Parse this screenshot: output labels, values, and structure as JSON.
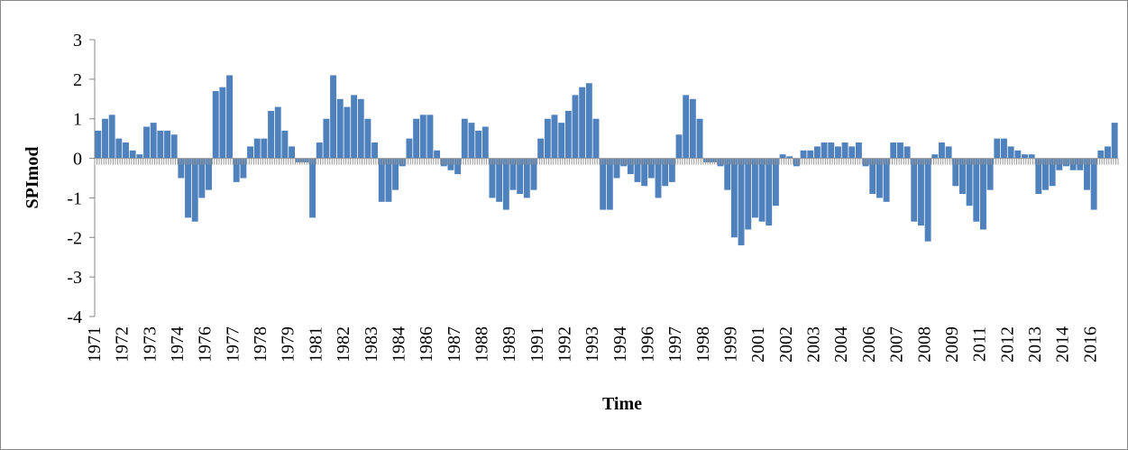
{
  "chart_data": {
    "type": "bar",
    "x_label": "Time",
    "y_label": "SPImod",
    "categories": [
      "1971",
      null,
      null,
      null,
      "1972",
      null,
      null,
      null,
      "1973",
      null,
      null,
      null,
      "1974",
      null,
      null,
      null,
      "1976",
      null,
      null,
      null,
      "1977",
      null,
      null,
      null,
      "1978",
      null,
      null,
      null,
      "1979",
      null,
      null,
      null,
      "1981",
      null,
      null,
      null,
      "1982",
      null,
      null,
      null,
      "1983",
      null,
      null,
      null,
      "1984",
      null,
      null,
      null,
      "1986",
      null,
      null,
      null,
      "1987",
      null,
      null,
      null,
      "1988",
      null,
      null,
      null,
      "1989",
      null,
      null,
      null,
      "1991",
      null,
      null,
      null,
      "1992",
      null,
      null,
      null,
      "1993",
      null,
      null,
      null,
      "1994",
      null,
      null,
      null,
      "1996",
      null,
      null,
      null,
      "1997",
      null,
      null,
      null,
      "1998",
      null,
      null,
      null,
      "1999",
      null,
      null,
      null,
      "2001",
      null,
      null,
      null,
      "2002",
      null,
      null,
      null,
      "2003",
      null,
      null,
      null,
      "2004",
      null,
      null,
      null,
      "2006",
      null,
      null,
      null,
      "2007",
      null,
      null,
      null,
      "2008",
      null,
      null,
      null,
      "2009",
      null,
      null,
      null,
      "2011",
      null,
      null,
      null,
      "2012",
      null,
      null,
      null,
      "2013",
      null,
      null,
      null,
      "2014",
      null,
      null,
      null,
      "2016",
      null,
      null,
      null
    ],
    "values": [
      0.7,
      1.0,
      1.1,
      0.5,
      0.4,
      0.2,
      0.1,
      0.8,
      0.9,
      0.7,
      0.7,
      0.6,
      -0.5,
      -1.5,
      -1.6,
      -1.0,
      -0.8,
      1.7,
      1.8,
      2.1,
      -0.6,
      -0.5,
      0.3,
      0.5,
      0.5,
      1.2,
      1.3,
      0.7,
      0.3,
      -0.1,
      -0.1,
      -1.5,
      0.4,
      1.0,
      2.1,
      1.5,
      1.3,
      1.6,
      1.5,
      1.0,
      0.4,
      -1.1,
      -1.1,
      -0.8,
      -0.2,
      0.5,
      1.0,
      1.1,
      1.1,
      0.2,
      -0.2,
      -0.3,
      -0.4,
      1.0,
      0.9,
      0.7,
      0.8,
      -1.0,
      -1.1,
      -1.3,
      -0.8,
      -0.9,
      -1.0,
      -0.8,
      0.5,
      1.0,
      1.1,
      0.9,
      1.2,
      1.6,
      1.8,
      1.9,
      1.0,
      -1.3,
      -1.3,
      -0.5,
      -0.2,
      -0.4,
      -0.6,
      -0.7,
      -0.5,
      -1.0,
      -0.7,
      -0.6,
      0.6,
      1.6,
      1.5,
      1.0,
      -0.1,
      -0.1,
      -0.2,
      -0.8,
      -2.0,
      -2.2,
      -1.8,
      -1.5,
      -1.6,
      -1.7,
      -1.2,
      0.1,
      0.05,
      -0.2,
      0.2,
      0.2,
      0.3,
      0.4,
      0.4,
      0.3,
      0.4,
      0.3,
      0.4,
      -0.2,
      -0.9,
      -1.0,
      -1.1,
      0.4,
      0.4,
      0.3,
      -1.6,
      -1.7,
      -2.1,
      0.1,
      0.4,
      0.3,
      -0.7,
      -0.9,
      -1.2,
      -1.6,
      -1.8,
      -0.8,
      0.5,
      0.5,
      0.3,
      0.2,
      0.1,
      0.1,
      -0.9,
      -0.8,
      -0.7,
      -0.3,
      -0.2,
      -0.3,
      -0.3,
      -0.8,
      -1.3,
      0.2,
      0.3,
      0.9
    ],
    "color": "#4f81bd",
    "ylim": [
      -4,
      3
    ],
    "yticks": [
      -4,
      -3,
      -2,
      -1,
      0,
      1,
      2,
      3
    ]
  }
}
